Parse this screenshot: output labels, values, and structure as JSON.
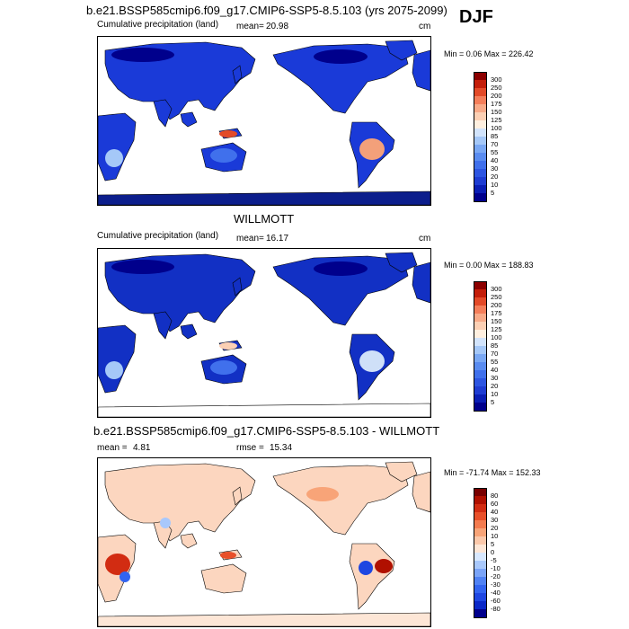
{
  "season": "DJF",
  "panels": [
    {
      "title": "b.e21.BSSP585cmip6.f09_g17.CMIP6-SSP5-8.5.103 (yrs 2075-2099)",
      "left_label": "Cumulative precipitation (land)",
      "stat_label": "mean=",
      "stat_value": "20.98",
      "units": "cm",
      "minmax": "Min =   0.06 Max = 226.42"
    },
    {
      "title": "WILLMOTT",
      "left_label": "Cumulative precipitation (land)",
      "stat_label": "mean=",
      "stat_value": "16.17",
      "units": "cm",
      "minmax": "Min =   0.00 Max = 188.83"
    },
    {
      "title": "b.e21.BSSP585cmip6.f09_g17.CMIP6-SSP5-8.5.103 - WILLMOTT",
      "left_label": "mean =",
      "left_value": "4.81",
      "stat_label": "rmse =",
      "stat_value": "15.34",
      "minmax": "Min = -71.74 Max = 152.33"
    }
  ],
  "chart_data": [
    {
      "type": "heatmap",
      "title": "b.e21.BSSP585cmip6.f09_g17.CMIP6-SSP5-8.5.103 (yrs 2075-2099)",
      "variable": "Cumulative precipitation (land)",
      "units": "cm",
      "mean": 20.98,
      "min": 0.06,
      "max": 226.42,
      "colorbar_levels": [
        5,
        10,
        20,
        30,
        40,
        55,
        70,
        85,
        100,
        125,
        150,
        175,
        200,
        250,
        300
      ],
      "colorbar_labels": [
        "5",
        "10",
        "20",
        "30",
        "40",
        "55",
        "70",
        "85",
        "100",
        "125",
        "150",
        "175",
        "200",
        "250",
        "300"
      ],
      "colors": [
        "#00008c",
        "#0a1eb4",
        "#1e3cd2",
        "#2d55e1",
        "#4070ec",
        "#5a8cf0",
        "#7aa8f4",
        "#a5c8f8",
        "#d2e4fc",
        "#fff0e0",
        "#fcd0b4",
        "#f8aa88",
        "#f47e5a",
        "#e34a28",
        "#c41e0a",
        "#8c0000"
      ]
    },
    {
      "type": "heatmap",
      "title": "WILLMOTT",
      "variable": "Cumulative precipitation (land)",
      "units": "cm",
      "mean": 16.17,
      "min": 0.0,
      "max": 188.83,
      "colorbar_levels": [
        5,
        10,
        20,
        30,
        40,
        55,
        70,
        85,
        100,
        125,
        150,
        175,
        200,
        250,
        300
      ],
      "colorbar_labels": [
        "5",
        "10",
        "20",
        "30",
        "40",
        "55",
        "70",
        "85",
        "100",
        "125",
        "150",
        "175",
        "200",
        "250",
        "300"
      ],
      "colors": [
        "#00008c",
        "#0a1eb4",
        "#1e3cd2",
        "#2d55e1",
        "#4070ec",
        "#5a8cf0",
        "#7aa8f4",
        "#a5c8f8",
        "#d2e4fc",
        "#fff0e0",
        "#fcd0b4",
        "#f8aa88",
        "#f47e5a",
        "#e34a28",
        "#c41e0a",
        "#8c0000"
      ]
    },
    {
      "type": "heatmap",
      "title": "b.e21.BSSP585cmip6.f09_g17.CMIP6-SSP5-8.5.103 - WILLMOTT",
      "mean": 4.81,
      "rmse": 15.34,
      "min": -71.74,
      "max": 152.33,
      "colorbar_levels": [
        -80,
        -60,
        -40,
        -30,
        -20,
        -10,
        -5,
        0,
        5,
        10,
        20,
        30,
        40,
        60,
        80
      ],
      "colorbar_labels": [
        "-80",
        "-60",
        "-40",
        "-30",
        "-20",
        "-10",
        "-5",
        "0",
        "5",
        "10",
        "20",
        "30",
        "40",
        "60",
        "80"
      ],
      "colors": [
        "#00008c",
        "#0a28c8",
        "#1e46e1",
        "#3264f0",
        "#5082f4",
        "#7aa4f8",
        "#a8c8fc",
        "#d8e8fe",
        "#fde6d6",
        "#fbc8aa",
        "#f8a478",
        "#f47c50",
        "#e8502a",
        "#d22c12",
        "#b01000",
        "#780000"
      ]
    }
  ]
}
